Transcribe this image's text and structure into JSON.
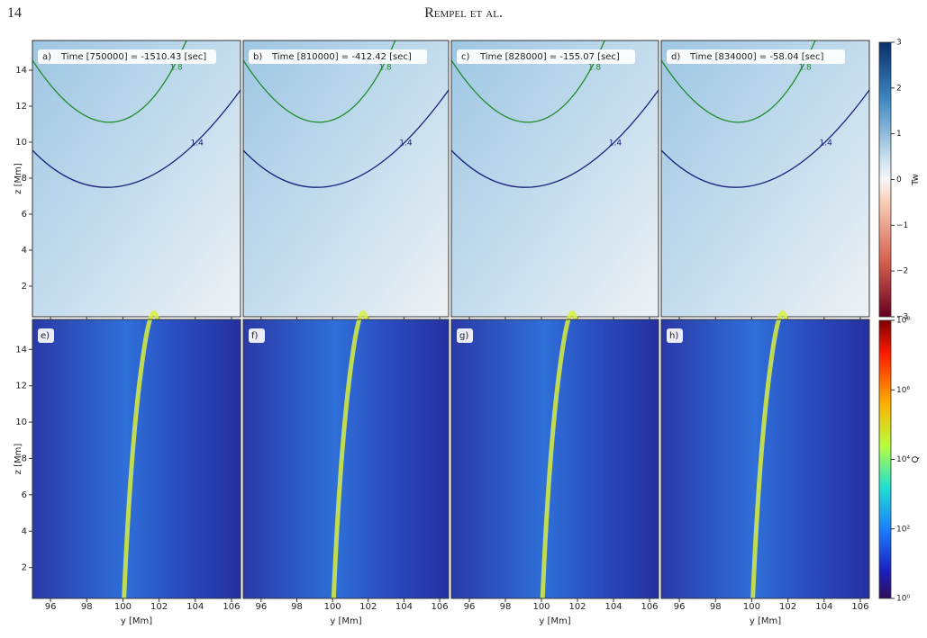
{
  "header": {
    "page": "14",
    "running_title": "Rempel et al."
  },
  "figure": {
    "panels_top": [
      {
        "label": "a)",
        "time": "Time [750000] = -1510.43 [sec]"
      },
      {
        "label": "b)",
        "time": "Time [810000] = -412.42 [sec]"
      },
      {
        "label": "c)",
        "time": "Time [828000] = -155.07 [sec]"
      },
      {
        "label": "d)",
        "time": "Time [834000] = -58.04 [sec]"
      }
    ],
    "panels_bottom": [
      {
        "label": "e)"
      },
      {
        "label": "f)"
      },
      {
        "label": "g)"
      },
      {
        "label": "h)"
      }
    ],
    "x_label": "y [Mm]",
    "y_label": "z [Mm]",
    "x_lim": [
      95,
      106.5
    ],
    "z_lim": [
      0.3,
      15.65
    ],
    "x_ticks": [
      96,
      98,
      100,
      102,
      104,
      106
    ],
    "z_ticks": [
      2,
      4,
      6,
      8,
      10,
      12,
      14
    ],
    "contours": [
      "1.8",
      "1.4"
    ],
    "colorbar_top": {
      "label": "Tw",
      "lim": [
        -3,
        3
      ],
      "ticks": [
        3,
        2,
        1,
        0,
        {
          "value": -1,
          "label": "−1"
        },
        {
          "value": -2,
          "label": "−2"
        },
        {
          "value": -3,
          "label": "−3"
        }
      ]
    },
    "colorbar_bottom": {
      "label": "Q",
      "lim": [
        1,
        100000000
      ],
      "ticks": [
        {
          "value": 100000000,
          "label": "10⁸"
        },
        {
          "value": 1000000,
          "label": "10⁶"
        },
        {
          "value": 10000,
          "label": "10⁴"
        },
        {
          "value": 100,
          "label": "10²"
        },
        {
          "value": 1,
          "label": "10⁰"
        }
      ]
    }
  }
}
